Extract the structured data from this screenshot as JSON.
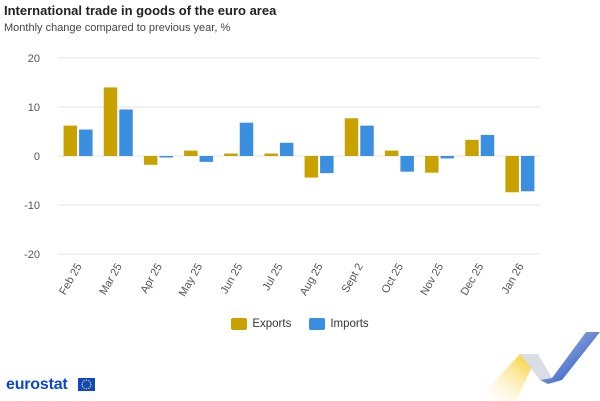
{
  "title": "International trade in goods of the euro area",
  "subtitle": "Monthly change compared to previous year, %",
  "brand": {
    "name": "eurostat"
  },
  "legend": {
    "exports": "Exports",
    "imports": "Imports"
  },
  "colors": {
    "exports": "#c8a300",
    "imports": "#3b8fe0",
    "grid": "#e5e5e5",
    "axis_text": "#555555"
  },
  "chart_data": {
    "type": "bar",
    "title": "International trade in goods of the euro area",
    "subtitle": "Monthly change compared to previous year, %",
    "categories": [
      "Feb 25",
      "Mar 25",
      "Apr 25",
      "May 25",
      "Jun 25",
      "Jul 25",
      "Aug 25",
      "Sept 2",
      "Oct 25",
      "Nov 25",
      "Dec 25",
      "Jan 26"
    ],
    "series": [
      {
        "name": "Exports",
        "values": [
          6.2,
          14.0,
          -1.8,
          1.1,
          0.5,
          0.5,
          -4.4,
          7.7,
          1.1,
          -3.4,
          3.3,
          -7.4
        ]
      },
      {
        "name": "Imports",
        "values": [
          5.4,
          9.5,
          -0.3,
          -1.2,
          6.8,
          2.7,
          -3.5,
          6.2,
          -3.2,
          -0.5,
          4.3,
          -7.2
        ]
      }
    ],
    "ylim": [
      -20,
      20
    ],
    "yticks": [
      -20,
      -10,
      0,
      10,
      20
    ],
    "grid": true,
    "legend_position": "bottom-center"
  }
}
